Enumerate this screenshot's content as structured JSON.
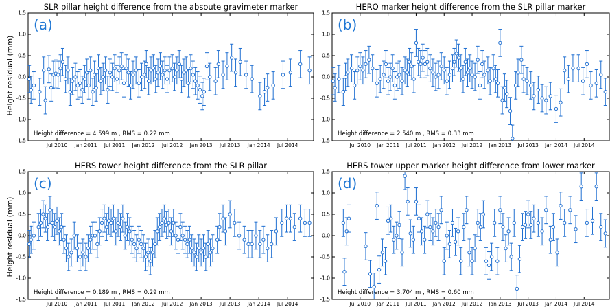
{
  "figure": {
    "ylabel": "Height residual (mm)",
    "colors": {
      "series": "#1f6fd1",
      "panel_letter": "#1f77d4",
      "axis": "#000000",
      "background": "#ffffff"
    }
  },
  "chart_data": [
    {
      "type": "scatter",
      "panel": "(a)",
      "title": "SLR pillar height difference from the absoute gravimeter marker",
      "annotation": "Height difference =  4.599 m , RMS = 0.22 mm",
      "ylabel": "Height residual (mm)",
      "xlabel": "",
      "ylim": [
        -1.5,
        1.5
      ],
      "yticks": [
        "-1.5",
        "-1.0",
        "-0.5",
        "0.0",
        "0.5",
        "1.0",
        "1.5"
      ],
      "xlim": [
        2010.0,
        2014.95
      ],
      "xticks": [
        {
          "x": 2010.5,
          "label": "Jul 2010"
        },
        {
          "x": 2011.0,
          "label": "Jan 2011"
        },
        {
          "x": 2011.5,
          "label": "Jul 2011"
        },
        {
          "x": 2012.0,
          "label": "Jan 2012"
        },
        {
          "x": 2012.5,
          "label": "Jul 2012"
        },
        {
          "x": 2013.0,
          "label": "Jan 2013"
        },
        {
          "x": 2013.5,
          "label": "Jul 2013"
        },
        {
          "x": 2014.0,
          "label": "Jan 2014"
        },
        {
          "x": 2014.5,
          "label": "Jul 2014"
        }
      ],
      "errorbar_mm": 0.32,
      "x": [
        2010.02,
        2010.05,
        2010.1,
        2010.2,
        2010.27,
        2010.3,
        2010.36,
        2010.4,
        2010.44,
        2010.48,
        2010.52,
        2010.56,
        2010.6,
        2010.65,
        2010.69,
        2010.73,
        2010.77,
        2010.82,
        2010.86,
        2010.9,
        2010.94,
        2010.98,
        2011.02,
        2011.05,
        2011.08,
        2011.12,
        2011.15,
        2011.18,
        2011.22,
        2011.26,
        2011.3,
        2011.34,
        2011.38,
        2011.42,
        2011.46,
        2011.5,
        2011.54,
        2011.58,
        2011.62,
        2011.66,
        2011.7,
        2011.74,
        2011.78,
        2011.82,
        2011.87,
        2011.92,
        2011.97,
        2012.02,
        2012.05,
        2012.09,
        2012.13,
        2012.17,
        2012.21,
        2012.25,
        2012.29,
        2012.33,
        2012.37,
        2012.41,
        2012.45,
        2012.5,
        2012.54,
        2012.58,
        2012.62,
        2012.66,
        2012.7,
        2012.74,
        2012.78,
        2012.82,
        2012.86,
        2012.9,
        2012.94,
        2012.98,
        2013.02,
        2013.05,
        2013.1,
        2013.15,
        2013.25,
        2013.3,
        2013.38,
        2013.45,
        2013.53,
        2013.6,
        2013.68,
        2013.78,
        2013.88,
        2014.02,
        2014.1,
        2014.15,
        2014.25,
        2014.42,
        2014.55,
        2014.72,
        2014.88
      ],
      "y": [
        -0.05,
        -0.3,
        -0.2,
        -0.35,
        0.15,
        -0.55,
        0.18,
        -0.25,
        0.05,
        0.08,
        0.05,
        0.2,
        0.35,
        -0.05,
        0.15,
        -0.35,
        -0.1,
        0.0,
        -0.2,
        -0.15,
        -0.3,
        -0.05,
        0.1,
        -0.2,
        0.15,
        -0.35,
        0.05,
        -0.25,
        0.2,
        -0.1,
        0.0,
        0.15,
        -0.3,
        0.1,
        0.0,
        0.2,
        -0.05,
        0.15,
        0.25,
        -0.15,
        0.2,
        0.1,
        -0.2,
        0.05,
        0.15,
        -0.15,
        0.0,
        0.05,
        0.3,
        -0.1,
        0.15,
        0.2,
        -0.05,
        0.1,
        0.25,
        0.05,
        0.15,
        -0.05,
        0.15,
        0.2,
        0.0,
        0.15,
        0.3,
        -0.05,
        0.1,
        0.15,
        -0.15,
        0.2,
        0.05,
        -0.1,
        -0.2,
        -0.3,
        -0.45,
        -0.35,
        0.25,
        0.0,
        -0.1,
        0.3,
        0.05,
        0.25,
        0.45,
        0.1,
        0.35,
        0.05,
        -0.05,
        -0.45,
        -0.35,
        -0.25,
        -0.2,
        0.05,
        0.1,
        0.3,
        0.15
      ]
    },
    {
      "type": "scatter",
      "panel": "(b)",
      "title": "HERO marker height difference from the SLR pillar marker",
      "annotation": "Height difference =  2.540 m , RMS = 0.33 mm",
      "ylabel": "",
      "xlabel": "",
      "ylim": [
        -1.5,
        1.5
      ],
      "yticks": [
        "-1.5",
        "-1.0",
        "-0.5",
        "0.0",
        "0.5",
        "1.0",
        "1.5"
      ],
      "xlim": [
        2010.0,
        2014.95
      ],
      "xticks": [
        {
          "x": 2010.5,
          "label": "Jul 2010"
        },
        {
          "x": 2011.0,
          "label": "Jan 2011"
        },
        {
          "x": 2011.5,
          "label": "Jul 2011"
        },
        {
          "x": 2012.0,
          "label": "Jan 2012"
        },
        {
          "x": 2012.5,
          "label": "Jul 2012"
        },
        {
          "x": 2013.0,
          "label": "Jan 2013"
        },
        {
          "x": 2013.5,
          "label": "Jul 2013"
        },
        {
          "x": 2014.0,
          "label": "Jan 2014"
        },
        {
          "x": 2014.5,
          "label": "Jul 2014"
        }
      ],
      "errorbar_mm": 0.32,
      "x": [
        2010.02,
        2010.05,
        2010.12,
        2010.2,
        2010.24,
        2010.28,
        2010.35,
        2010.4,
        2010.45,
        2010.5,
        2010.55,
        2010.6,
        2010.66,
        2010.72,
        2010.8,
        2010.86,
        2010.92,
        2010.96,
        2011.0,
        2011.04,
        2011.08,
        2011.12,
        2011.16,
        2011.2,
        2011.25,
        2011.3,
        2011.34,
        2011.38,
        2011.42,
        2011.46,
        2011.5,
        2011.54,
        2011.58,
        2011.62,
        2011.66,
        2011.7,
        2011.75,
        2011.8,
        2011.85,
        2011.9,
        2011.95,
        2012.0,
        2012.05,
        2012.1,
        2012.15,
        2012.18,
        2012.22,
        2012.26,
        2012.3,
        2012.34,
        2012.38,
        2012.42,
        2012.46,
        2012.5,
        2012.55,
        2012.6,
        2012.64,
        2012.68,
        2012.72,
        2012.78,
        2012.82,
        2012.88,
        2012.92,
        2012.96,
        2013.0,
        2013.04,
        2013.08,
        2013.12,
        2013.18,
        2013.22,
        2013.28,
        2013.32,
        2013.38,
        2013.42,
        2013.48,
        2013.55,
        2013.6,
        2013.68,
        2013.75,
        2013.82,
        2013.9,
        2014.0,
        2014.08,
        2014.15,
        2014.22,
        2014.3,
        2014.4,
        2014.48,
        2014.55,
        2014.62,
        2014.72,
        2014.8,
        2014.88
      ],
      "y": [
        -0.1,
        -0.25,
        -0.05,
        -0.35,
        0.0,
        0.1,
        0.2,
        -0.2,
        0.15,
        0.25,
        0.15,
        0.3,
        0.4,
        0.2,
        -0.15,
        -0.05,
        0.05,
        0.3,
        -0.1,
        0.0,
        0.2,
        -0.2,
        0.0,
        0.05,
        -0.1,
        0.15,
        0.1,
        0.35,
        0.25,
        -0.05,
        0.8,
        0.35,
        0.3,
        0.45,
        0.3,
        0.35,
        0.2,
        0.1,
        0.0,
        0.05,
        0.25,
        0.15,
        -0.1,
        0.05,
        0.2,
        0.35,
        0.55,
        0.45,
        0.2,
        -0.05,
        0.35,
        0.1,
        0.2,
        0.05,
        0.0,
        0.4,
        -0.2,
        0.3,
        0.05,
        0.15,
        -0.1,
        0.2,
        -0.05,
        -0.15,
        0.8,
        -0.55,
        -0.25,
        -0.4,
        -0.8,
        -1.45,
        -0.2,
        0.1,
        0.4,
        -0.05,
        -0.1,
        -0.2,
        -0.45,
        -0.3,
        -0.5,
        -0.55,
        -0.45,
        -0.75,
        -0.6,
        0.15,
        -0.05,
        0.2,
        0.2,
        -0.1,
        0.3,
        -0.2,
        -0.15,
        0.05,
        -0.35
      ]
    },
    {
      "type": "scatter",
      "panel": "(c)",
      "title": "HERS tower height difference from the SLR pillar",
      "annotation": "Height difference =  0.189 m , RMS = 0.29 mm",
      "ylabel": "Height residual (mm)",
      "xlabel": "",
      "ylim": [
        -1.5,
        1.5
      ],
      "yticks": [
        "-1.5",
        "-1.0",
        "-0.5",
        "0.0",
        "0.5",
        "1.0",
        "1.5"
      ],
      "xlim": [
        2010.0,
        2014.95
      ],
      "xticks": [
        {
          "x": 2010.5,
          "label": "Jul 2010"
        },
        {
          "x": 2011.0,
          "label": "Jan 2011"
        },
        {
          "x": 2011.5,
          "label": "Jul 2011"
        },
        {
          "x": 2012.0,
          "label": "Jan 2012"
        },
        {
          "x": 2012.5,
          "label": "Jul 2012"
        },
        {
          "x": 2013.0,
          "label": "Jan 2013"
        },
        {
          "x": 2013.5,
          "label": "Jul 2013"
        },
        {
          "x": 2014.0,
          "label": "Jan 2014"
        },
        {
          "x": 2014.5,
          "label": "Jul 2014"
        }
      ],
      "errorbar_mm": 0.32,
      "x": [
        2010.02,
        2010.05,
        2010.1,
        2010.18,
        2010.22,
        2010.26,
        2010.3,
        2010.34,
        2010.38,
        2010.42,
        2010.46,
        2010.5,
        2010.54,
        2010.58,
        2010.62,
        2010.66,
        2010.7,
        2010.75,
        2010.8,
        2010.85,
        2010.9,
        2010.95,
        2011.0,
        2011.04,
        2011.08,
        2011.12,
        2011.16,
        2011.2,
        2011.24,
        2011.28,
        2011.32,
        2011.36,
        2011.4,
        2011.44,
        2011.48,
        2011.52,
        2011.56,
        2011.6,
        2011.64,
        2011.68,
        2011.72,
        2011.76,
        2011.8,
        2011.84,
        2011.88,
        2011.92,
        2011.96,
        2012.0,
        2012.04,
        2012.08,
        2012.12,
        2012.16,
        2012.2,
        2012.24,
        2012.28,
        2012.32,
        2012.36,
        2012.4,
        2012.44,
        2012.48,
        2012.52,
        2012.56,
        2012.6,
        2012.64,
        2012.68,
        2012.72,
        2012.76,
        2012.8,
        2012.84,
        2012.88,
        2012.92,
        2012.96,
        2013.0,
        2013.04,
        2013.08,
        2013.12,
        2013.16,
        2013.2,
        2013.28,
        2013.32,
        2013.38,
        2013.42,
        2013.5,
        2013.58,
        2013.66,
        2013.75,
        2013.82,
        2013.88,
        2013.95,
        2014.02,
        2014.08,
        2014.15,
        2014.22,
        2014.3,
        2014.4,
        2014.48,
        2014.55,
        2014.62,
        2014.72,
        2014.8,
        2014.88
      ],
      "y": [
        -0.2,
        -0.1,
        0.0,
        0.2,
        0.3,
        0.5,
        0.4,
        0.2,
        0.6,
        0.3,
        0.2,
        0.35,
        0.1,
        0.2,
        -0.1,
        -0.3,
        -0.5,
        -0.4,
        0.0,
        -0.3,
        -0.5,
        -0.4,
        -0.5,
        -0.3,
        -0.1,
        0.0,
        0.0,
        -0.2,
        0.1,
        0.3,
        0.4,
        0.2,
        0.35,
        0.3,
        0.4,
        0.1,
        0.3,
        0.2,
        0.4,
        0.0,
        0.2,
        0.1,
        -0.1,
        -0.2,
        -0.3,
        -0.1,
        -0.2,
        -0.3,
        -0.5,
        -0.4,
        -0.6,
        -0.4,
        -0.2,
        0.1,
        0.2,
        0.3,
        0.4,
        0.25,
        0.3,
        0.1,
        0.3,
        0.0,
        -0.1,
        0.2,
        0.0,
        -0.1,
        -0.2,
        -0.1,
        -0.3,
        -0.4,
        -0.5,
        -0.3,
        -0.4,
        -0.3,
        -0.5,
        -0.2,
        -0.4,
        -0.3,
        -0.1,
        0.2,
        0.4,
        0.1,
        0.5,
        0.3,
        0.0,
        -0.1,
        -0.2,
        -0.2,
        0.0,
        -0.2,
        -0.1,
        -0.3,
        -0.2,
        0.1,
        0.3,
        0.4,
        0.4,
        0.2,
        0.4,
        0.3,
        0.3
      ]
    },
    {
      "type": "scatter",
      "panel": "(d)",
      "title": "HERS tower upper marker height difference from lower marker",
      "annotation": "Height difference =  3.704 m , RMS = 0.60 mm",
      "ylabel": "",
      "xlabel": "",
      "ylim": [
        -1.5,
        1.5
      ],
      "yticks": [
        "-1.5",
        "-1.0",
        "-0.5",
        "0.0",
        "0.5",
        "1.0",
        "1.5"
      ],
      "xlim": [
        2010.0,
        2014.95
      ],
      "xticks": [
        {
          "x": 2010.5,
          "label": "Jul 2010"
        },
        {
          "x": 2011.0,
          "label": "Jan 2011"
        },
        {
          "x": 2011.5,
          "label": "Jul 2011"
        },
        {
          "x": 2012.0,
          "label": "Jan 2012"
        },
        {
          "x": 2012.5,
          "label": "Jul 2012"
        },
        {
          "x": 2013.0,
          "label": "Jan 2013"
        },
        {
          "x": 2013.5,
          "label": "Jul 2013"
        },
        {
          "x": 2014.0,
          "label": "Jan 2014"
        },
        {
          "x": 2014.5,
          "label": "Jul 2014"
        }
      ],
      "errorbar_mm": 0.32,
      "x": [
        2010.2,
        2010.22,
        2010.26,
        2010.3,
        2010.6,
        2010.68,
        2010.75,
        2010.8,
        2010.84,
        2010.9,
        2010.95,
        2011.0,
        2011.05,
        2011.1,
        2011.15,
        2011.2,
        2011.25,
        2011.3,
        2011.35,
        2011.4,
        2011.45,
        2011.5,
        2011.55,
        2011.6,
        2011.65,
        2011.7,
        2011.75,
        2011.8,
        2011.85,
        2011.9,
        2011.95,
        2012.0,
        2012.05,
        2012.1,
        2012.15,
        2012.2,
        2012.25,
        2012.3,
        2012.35,
        2012.4,
        2012.45,
        2012.5,
        2012.55,
        2012.6,
        2012.65,
        2012.7,
        2012.75,
        2012.8,
        2012.85,
        2012.9,
        2012.95,
        2013.0,
        2013.05,
        2013.1,
        2013.15,
        2013.2,
        2013.25,
        2013.3,
        2013.35,
        2013.4,
        2013.45,
        2013.5,
        2013.55,
        2013.6,
        2013.68,
        2013.75,
        2013.82,
        2013.9,
        2013.95,
        2014.02,
        2014.08,
        2014.15,
        2014.25,
        2014.35,
        2014.45,
        2014.55,
        2014.65,
        2014.72,
        2014.8,
        2014.88
      ],
      "y": [
        0.3,
        -0.85,
        0.1,
        0.4,
        -0.25,
        -0.9,
        -1.2,
        0.7,
        -0.8,
        -0.4,
        -0.6,
        0.35,
        0.4,
        -0.1,
        0.0,
        0.25,
        -0.4,
        1.4,
        0.8,
        0.05,
        -0.1,
        0.8,
        0.4,
        0.1,
        -0.1,
        0.5,
        0.2,
        0.1,
        0.3,
        0.2,
        0.6,
        -0.6,
        0.0,
        -0.2,
        0.3,
        -0.15,
        0.1,
        -0.6,
        0.2,
        0.6,
        -0.4,
        -0.6,
        -0.3,
        0.3,
        0.2,
        0.5,
        -0.6,
        -0.7,
        -0.5,
        0.3,
        -0.6,
        0.6,
        0.2,
        -0.3,
        0.1,
        -0.5,
        0.3,
        -1.25,
        -0.55,
        0.2,
        0.25,
        0.5,
        0.25,
        0.4,
        0.3,
        0.1,
        0.6,
        -0.1,
        0.2,
        -0.4,
        0.7,
        0.3,
        0.6,
        0.15,
        1.15,
        0.3,
        0.35,
        1.15,
        0.2,
        0.05
      ]
    }
  ]
}
